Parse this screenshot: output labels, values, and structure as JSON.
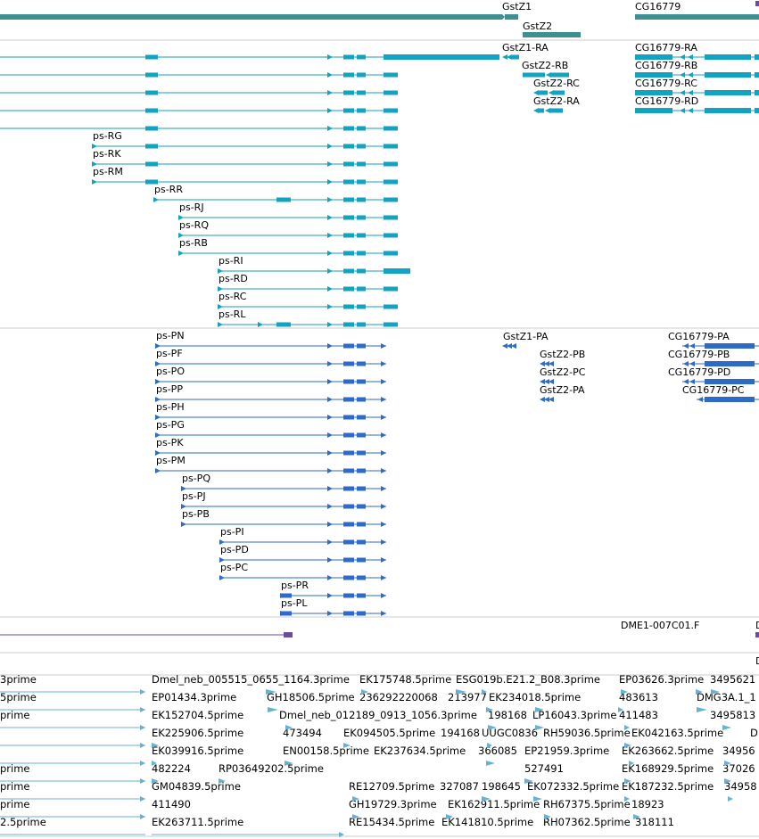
{
  "colors": {
    "gene": "#3d8f91",
    "transcript": "#12a2c2",
    "protein": "#2e6ac9",
    "clone": "#6a4aa3",
    "est": "#6ab0d6",
    "separator": "#c8ccd4"
  },
  "tracks": {
    "genes": [
      {
        "label": "GstZ1"
      },
      {
        "label": "GstZ2"
      },
      {
        "label": "CG16779"
      }
    ],
    "transcripts": [
      {
        "label": "GstZ1-RA"
      },
      {
        "label": "GstZ2-RB"
      },
      {
        "label": "GstZ2-RC"
      },
      {
        "label": "GstZ2-RA"
      },
      {
        "label": "CG16779-RA"
      },
      {
        "label": "CG16779-RB"
      },
      {
        "label": "CG16779-RC"
      },
      {
        "label": "CG16779-RD"
      },
      {
        "label": "ps-RG"
      },
      {
        "label": "ps-RK"
      },
      {
        "label": "ps-RM"
      },
      {
        "label": "ps-RR"
      },
      {
        "label": "ps-RJ"
      },
      {
        "label": "ps-RQ"
      },
      {
        "label": "ps-RB"
      },
      {
        "label": "ps-RI"
      },
      {
        "label": "ps-RD"
      },
      {
        "label": "ps-RC"
      },
      {
        "label": "ps-RL"
      }
    ],
    "proteins": [
      {
        "label": "ps-PN"
      },
      {
        "label": "ps-PF"
      },
      {
        "label": "ps-PO"
      },
      {
        "label": "ps-PP"
      },
      {
        "label": "ps-PH"
      },
      {
        "label": "ps-PG"
      },
      {
        "label": "ps-PK"
      },
      {
        "label": "ps-PM"
      },
      {
        "label": "ps-PQ"
      },
      {
        "label": "ps-PJ"
      },
      {
        "label": "ps-PB"
      },
      {
        "label": "ps-PI"
      },
      {
        "label": "ps-PD"
      },
      {
        "label": "ps-PC"
      },
      {
        "label": "ps-PR"
      },
      {
        "label": "ps-PL"
      },
      {
        "label": "GstZ1-PA"
      },
      {
        "label": "GstZ2-PB"
      },
      {
        "label": "GstZ2-PC"
      },
      {
        "label": "GstZ2-PA"
      },
      {
        "label": "CG16779-PA"
      },
      {
        "label": "CG16779-PB"
      },
      {
        "label": "CG16779-PD"
      },
      {
        "label": "CG16779-PC"
      }
    ],
    "clones": [
      {
        "label": "DME1-007C01.F"
      },
      {
        "label": "D"
      },
      {
        "label": "D"
      }
    ],
    "ests": [
      {
        "label": "3prime"
      },
      {
        "label": "Dmel_neb_005515_0655_1164.3prime"
      },
      {
        "label": "EK175748.5prime"
      },
      {
        "label": "ESG019b.E21.2_B08.3prime"
      },
      {
        "label": "EP03626.3prime"
      },
      {
        "label": "3495621"
      },
      {
        "label": "5prime"
      },
      {
        "label": "EP01434.3prime"
      },
      {
        "label": "GH18506.5prime"
      },
      {
        "label": "236292220068"
      },
      {
        "label": "213977"
      },
      {
        "label": "EK234018.5prime"
      },
      {
        "label": "483613"
      },
      {
        "label": "DMG3A.1_1"
      },
      {
        "label": "prime"
      },
      {
        "label": "EK152704.5prime"
      },
      {
        "label": "Dmel_neb_012189_0913_1056.3prime"
      },
      {
        "label": "198168"
      },
      {
        "label": "LP16043.3prime"
      },
      {
        "label": "411483"
      },
      {
        "label": "3495813"
      },
      {
        "label": "EK225906.5prime"
      },
      {
        "label": "473494"
      },
      {
        "label": "EK094505.5prime"
      },
      {
        "label": "194168"
      },
      {
        "label": "UUGC0836"
      },
      {
        "label": "RH59036.5prime"
      },
      {
        "label": "EK042163.5prime"
      },
      {
        "label": "D"
      },
      {
        "label": "EK039916.5prime"
      },
      {
        "label": "EN00158.5prime"
      },
      {
        "label": "EK237634.5prime"
      },
      {
        "label": "366085"
      },
      {
        "label": "EP21959.3prime"
      },
      {
        "label": "EK263662.5prime"
      },
      {
        "label": "34956"
      },
      {
        "label": "prime"
      },
      {
        "label": "482224"
      },
      {
        "label": "RP03649202.5prime"
      },
      {
        "label": "527491"
      },
      {
        "label": "EK168929.5prime"
      },
      {
        "label": "37026"
      },
      {
        "label": "prime"
      },
      {
        "label": "GM04839.5prime"
      },
      {
        "label": "RE12709.5prime"
      },
      {
        "label": "327087"
      },
      {
        "label": "198645"
      },
      {
        "label": "EK072332.5prime"
      },
      {
        "label": "EK187232.5prime"
      },
      {
        "label": "34958"
      },
      {
        "label": "prime"
      },
      {
        "label": "411490"
      },
      {
        "label": "GH19729.3prime"
      },
      {
        "label": "EK162911.5prime"
      },
      {
        "label": "RH67375.5prime"
      },
      {
        "label": "18923"
      },
      {
        "label": "2.5prime"
      },
      {
        "label": "EK263711.5prime"
      },
      {
        "label": "RE15434.5prime"
      },
      {
        "label": "EK141810.5prime"
      },
      {
        "label": "RH07362.5prime"
      },
      {
        "label": "318111"
      }
    ]
  }
}
